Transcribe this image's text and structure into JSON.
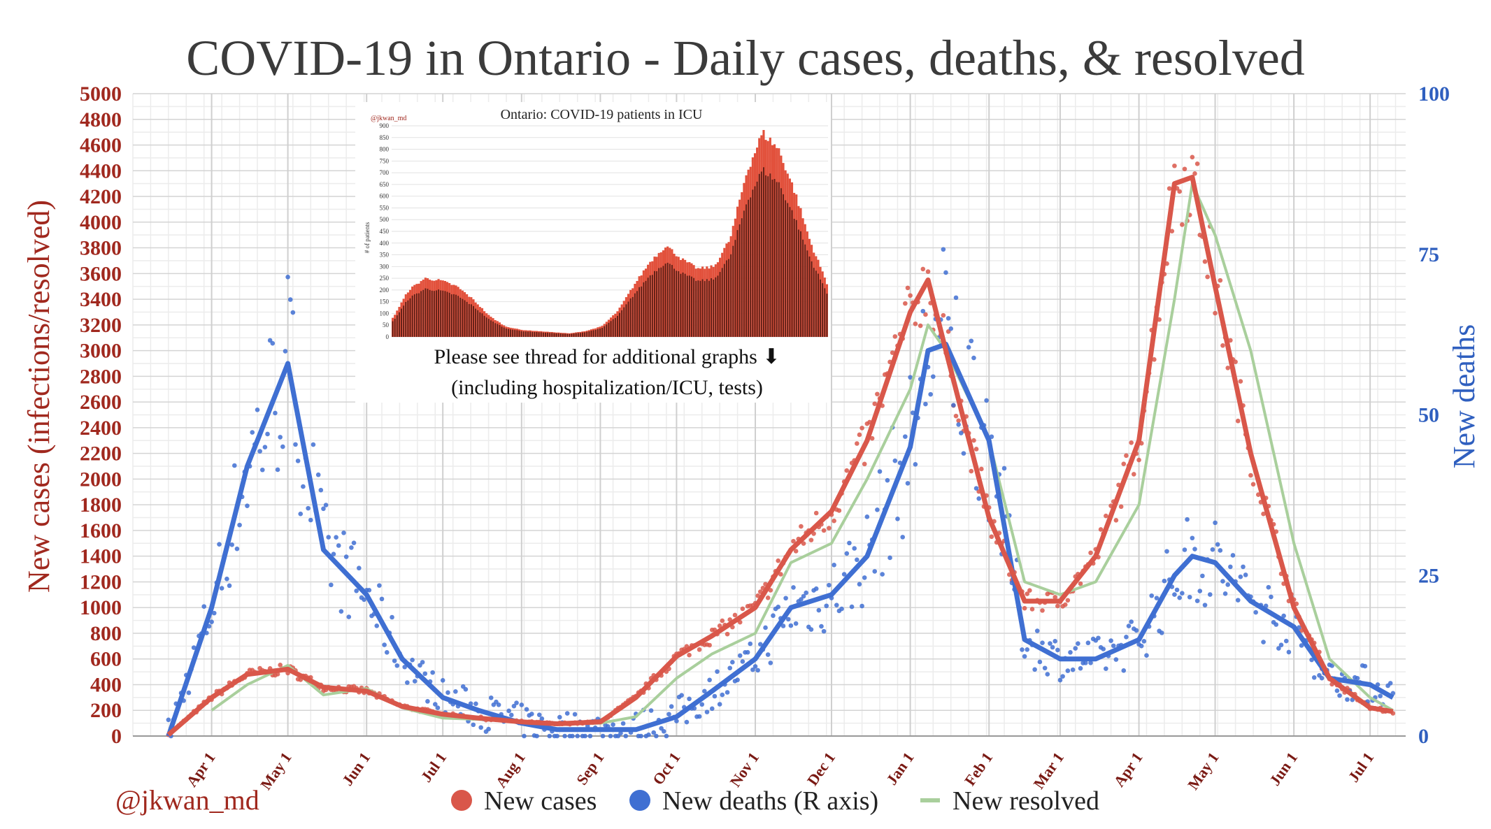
{
  "chart_data": {
    "type": "line",
    "title": "COVID-19 in Ontario - Daily cases, deaths, & resolved",
    "ylabel_left": "New cases (infections/resolved)",
    "ylabel_right": "New deaths",
    "ylim_left": [
      0,
      5000
    ],
    "ylim_right": [
      0,
      100
    ],
    "yticks_left": [
      "0",
      "200",
      "400",
      "600",
      "800",
      "1000",
      "1200",
      "1400",
      "1600",
      "1800",
      "2000",
      "2200",
      "2400",
      "2600",
      "2800",
      "3000",
      "3200",
      "3400",
      "3600",
      "3800",
      "4000",
      "4200",
      "4400",
      "4600",
      "4800",
      "5000"
    ],
    "yticks_right": [
      "0",
      "25",
      "50",
      "75",
      "100"
    ],
    "xticks": [
      "Apr 1",
      "May 1",
      "Jun 1",
      "Jul 1",
      "Aug 1",
      "Sep 1",
      "Oct 1",
      "Nov 1",
      "Dec 1",
      "Jan 1",
      "Feb 1",
      "Mar 1",
      "Apr 1",
      "May 1",
      "Jun 1",
      "Jul 1"
    ],
    "x": [
      "2020-03-15",
      "2020-04-01",
      "2020-04-15",
      "2020-05-01",
      "2020-05-15",
      "2020-06-01",
      "2020-06-15",
      "2020-07-01",
      "2020-07-15",
      "2020-08-01",
      "2020-08-15",
      "2020-09-01",
      "2020-09-15",
      "2020-10-01",
      "2020-10-15",
      "2020-11-01",
      "2020-11-15",
      "2020-12-01",
      "2020-12-15",
      "2021-01-01",
      "2021-01-08",
      "2021-01-15",
      "2021-02-01",
      "2021-02-15",
      "2021-03-01",
      "2021-03-15",
      "2021-04-01",
      "2021-04-15",
      "2021-04-22",
      "2021-05-01",
      "2021-05-15",
      "2021-06-01",
      "2021-06-15",
      "2021-07-01",
      "2021-07-10"
    ],
    "grid": true,
    "legend_position": "bottom",
    "series": [
      {
        "name": "New cases",
        "axis": "left",
        "color": "#d9574a",
        "values": [
          10,
          300,
          480,
          520,
          380,
          350,
          230,
          170,
          140,
          110,
          95,
          110,
          300,
          620,
          780,
          1000,
          1450,
          1750,
          2300,
          3300,
          3550,
          3000,
          1700,
          1050,
          1050,
          1400,
          2300,
          4300,
          4350,
          3500,
          2200,
          1000,
          450,
          220,
          190
        ]
      },
      {
        "name": "New deaths (R axis)",
        "axis": "right",
        "color": "#3f6fd2",
        "values": [
          0,
          20,
          42,
          58,
          29,
          22,
          12,
          6,
          4,
          2,
          1,
          1,
          1,
          3,
          7,
          12,
          20,
          22,
          28,
          45,
          60,
          61,
          46,
          15,
          12,
          12,
          15,
          25,
          28,
          27,
          21,
          17,
          9,
          8,
          6
        ]
      },
      {
        "name": "New resolved",
        "axis": "right-not",
        "color": "#a9cf9c",
        "values": [
          null,
          200,
          400,
          550,
          320,
          370,
          220,
          140,
          130,
          110,
          95,
          100,
          150,
          450,
          640,
          800,
          1350,
          1500,
          2000,
          2700,
          3200,
          3000,
          2300,
          1200,
          1100,
          1200,
          1800,
          3400,
          4300,
          3900,
          3000,
          1500,
          600,
          300,
          200
        ]
      }
    ],
    "legend": [
      {
        "label": "New cases",
        "color": "#d9574a",
        "shape": "dot"
      },
      {
        "label": "New deaths (R axis)",
        "color": "#3f6fd2",
        "shape": "dot"
      },
      {
        "label": "New resolved",
        "color": "#a9cf9c",
        "shape": "line"
      }
    ],
    "inset": {
      "type": "bar",
      "title": "Ontario: COVID-19 patients in ICU",
      "handle": "@jkwan_md",
      "ylabel": "# of patients",
      "ylim": [
        0,
        900
      ],
      "yticks": [
        "0",
        "50",
        "100",
        "150",
        "200",
        "250",
        "300",
        "350",
        "400",
        "450",
        "500",
        "550",
        "600",
        "650",
        "700",
        "750",
        "800",
        "850",
        "900"
      ],
      "values": [
        80,
        200,
        250,
        240,
        215,
        160,
        90,
        45,
        30,
        25,
        20,
        15,
        25,
        45,
        110,
        220,
        320,
        390,
        330,
        290,
        300,
        420,
        700,
        870,
        800,
        620,
        400,
        230
      ]
    }
  },
  "handle": "@jkwan_md",
  "note_line1": "Please see thread for additional graphs ⬇",
  "note_line2": "(including hospitalization/ICU, tests)"
}
